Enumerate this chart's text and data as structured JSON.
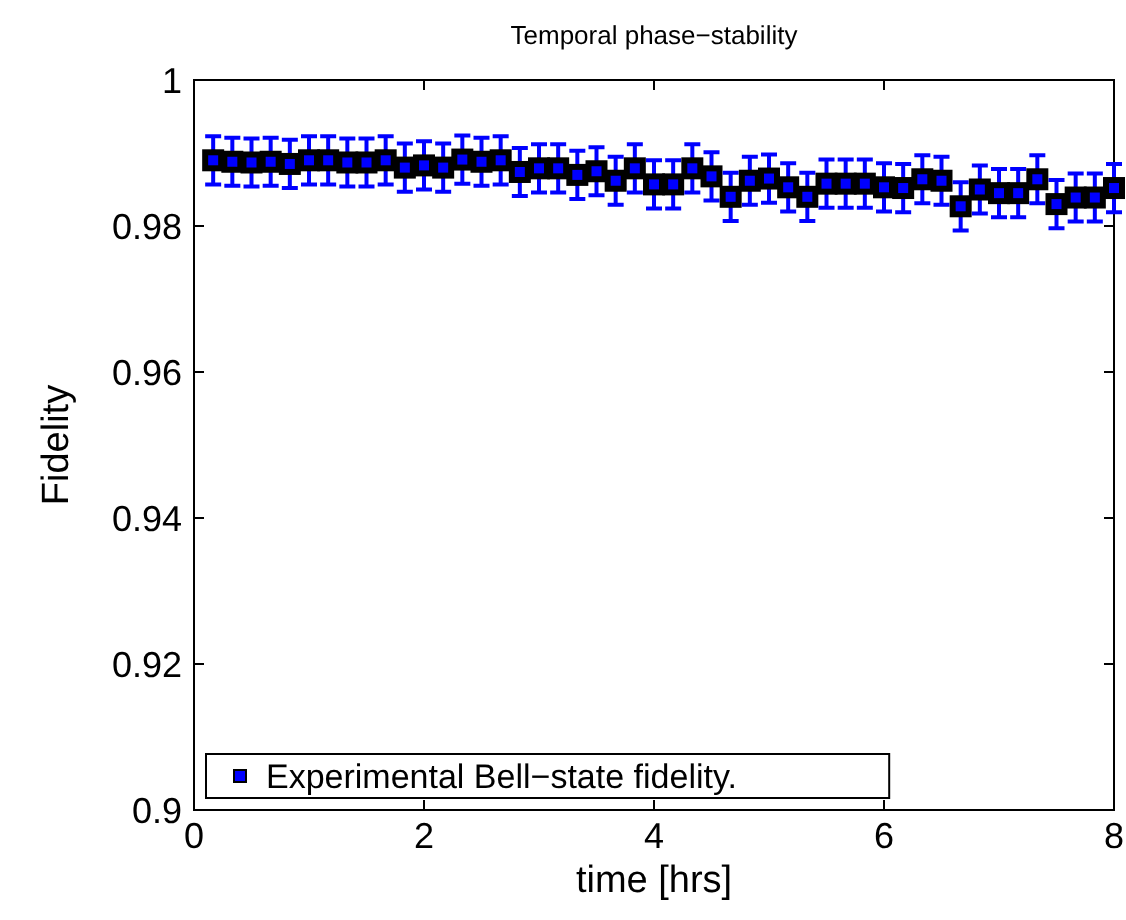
{
  "chart_data": {
    "type": "scatter",
    "title": "Temporal phase−stability",
    "xlabel": "time [hrs]",
    "ylabel": "Fidelity",
    "x": [
      0.1667,
      0.3333,
      0.5,
      0.6667,
      0.8333,
      1,
      1.1667,
      1.3333,
      1.5,
      1.6667,
      1.8333,
      2,
      2.1667,
      2.3333,
      2.5,
      2.6667,
      2.8333,
      3,
      3.1667,
      3.3333,
      3.5,
      3.6667,
      3.8333,
      4,
      4.1667,
      4.3333,
      4.5,
      4.6667,
      4.8333,
      5,
      5.1667,
      5.3333,
      5.5,
      5.6667,
      5.8333,
      6,
      6.1667,
      6.3333,
      6.5,
      6.6667,
      6.8333,
      7,
      7.1667,
      7.3333,
      7.5,
      7.6667,
      7.8333,
      8
    ],
    "series": [
      {
        "name": "Experimental Bell−state fidelity.",
        "color": "#0000ff",
        "values": [
          0.989,
          0.9888,
          0.9887,
          0.9888,
          0.9885,
          0.989,
          0.989,
          0.9887,
          0.9887,
          0.989,
          0.988,
          0.9883,
          0.988,
          0.9891,
          0.9888,
          0.989,
          0.9874,
          0.9879,
          0.9879,
          0.987,
          0.9875,
          0.9862,
          0.9879,
          0.9857,
          0.9857,
          0.9879,
          0.9868,
          0.984,
          0.9862,
          0.9865,
          0.9853,
          0.984,
          0.9858,
          0.9858,
          0.9858,
          0.9853,
          0.9852,
          0.9864,
          0.9862,
          0.9827,
          0.985,
          0.9845,
          0.9845,
          0.9864,
          0.983,
          0.9839,
          0.9839,
          0.9852
        ],
        "errors": [
          0.0033,
          0.0033,
          0.0033,
          0.0033,
          0.0033,
          0.0033,
          0.0033,
          0.0033,
          0.0033,
          0.0033,
          0.0033,
          0.0033,
          0.0033,
          0.0033,
          0.0033,
          0.0033,
          0.0033,
          0.0033,
          0.0033,
          0.0033,
          0.0033,
          0.0033,
          0.0033,
          0.0033,
          0.0033,
          0.0033,
          0.0033,
          0.0033,
          0.0033,
          0.0033,
          0.0033,
          0.0033,
          0.0033,
          0.0033,
          0.0033,
          0.0033,
          0.0033,
          0.0033,
          0.0033,
          0.0033,
          0.0033,
          0.0033,
          0.0033,
          0.0033,
          0.0033,
          0.0033,
          0.0033,
          0.0033
        ]
      }
    ],
    "xlim": [
      0,
      8
    ],
    "xticks": [
      0,
      2,
      4,
      6,
      8
    ],
    "ylim": [
      0.9,
      1
    ],
    "yticks": [
      0.9,
      0.92,
      0.94,
      0.96,
      0.98,
      1
    ],
    "marker": "square",
    "legend": "bottom left",
    "grid": false
  }
}
